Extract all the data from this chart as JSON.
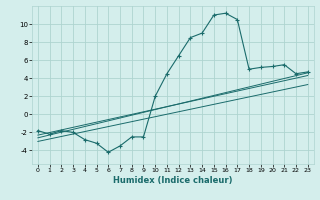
{
  "xlabel": "Humidex (Indice chaleur)",
  "ylabel": "",
  "bg_color": "#d4eeec",
  "grid_color": "#aed4d0",
  "line_color": "#1a6b6b",
  "xlim": [
    -0.5,
    23.5
  ],
  "ylim": [
    -5.5,
    12.0
  ],
  "xticks": [
    0,
    1,
    2,
    3,
    4,
    5,
    6,
    7,
    8,
    9,
    10,
    11,
    12,
    13,
    14,
    15,
    16,
    17,
    18,
    19,
    20,
    21,
    22,
    23
  ],
  "yticks": [
    -4,
    -2,
    0,
    2,
    4,
    6,
    8,
    10
  ],
  "main_curve_x": [
    0,
    1,
    2,
    3,
    4,
    5,
    6,
    7,
    8,
    9,
    10,
    11,
    12,
    13,
    14,
    15,
    16,
    17,
    18,
    19,
    20,
    21,
    22,
    23
  ],
  "main_curve_y": [
    -1.8,
    -2.2,
    -1.8,
    -2.0,
    -2.8,
    -3.2,
    -4.2,
    -3.5,
    -2.5,
    -2.5,
    2.0,
    4.5,
    6.5,
    8.5,
    9.0,
    11.0,
    11.2,
    10.5,
    5.0,
    5.2,
    5.3,
    5.5,
    4.5,
    4.7
  ],
  "trend1_x": [
    0,
    23
  ],
  "trend1_y": [
    -2.3,
    4.3
  ],
  "trend2_x": [
    0,
    23
  ],
  "trend2_y": [
    -2.6,
    4.6
  ],
  "trend3_x": [
    0,
    23
  ],
  "trend3_y": [
    -3.0,
    3.3
  ]
}
